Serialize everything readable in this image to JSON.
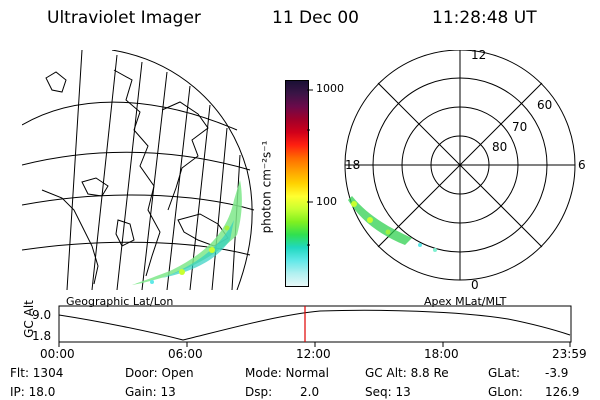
{
  "header": {
    "title": "Ultraviolet Imager",
    "date": "11 Dec 00",
    "time": "11:28:48 UT"
  },
  "colorbar": {
    "label": "photon cm⁻²s⁻¹",
    "ticks": [
      "1000",
      "100"
    ],
    "colors": [
      "#1a1035",
      "#3b1446",
      "#6b0a4a",
      "#a0002a",
      "#d0001a",
      "#ff2010",
      "#ff6a00",
      "#ffa000",
      "#ffd200",
      "#ffff30",
      "#c8ff30",
      "#80f020",
      "#30e050",
      "#20d8c0",
      "#60e8e8",
      "#b0f0f0",
      "#e8f8f8"
    ]
  },
  "geo_panel": {
    "label": "Geographic Lat/Lon"
  },
  "polar_panel": {
    "label": "Apex MLat/MLT",
    "mlt_labels": {
      "top": "12",
      "left": "18",
      "right": "6",
      "bottom": "0"
    },
    "lat_labels": [
      "60",
      "70",
      "80"
    ]
  },
  "altitude_strip": {
    "axis_label": "GC Alt",
    "y_ticks": [
      "9.0",
      "1.8"
    ],
    "x_ticks": [
      "00:00",
      "06:00",
      "12:00",
      "18:00",
      "23:59"
    ],
    "marker_color": "#e00000"
  },
  "info": {
    "row1": {
      "flt": "Flt: 1304",
      "door": "Door: Open",
      "mode": "Mode: Normal",
      "gcalt": "GC Alt: 8.8 Re",
      "glat_label": "GLat:",
      "glat_value": "-3.9"
    },
    "row2": {
      "ip": "IP: 18.0",
      "gain": "Gain: 13",
      "dsp_label": "Dsp:",
      "dsp_value": "2.0",
      "seq": "Seq: 13",
      "glon_label": "GLon:",
      "glon_value": "126.9"
    }
  }
}
